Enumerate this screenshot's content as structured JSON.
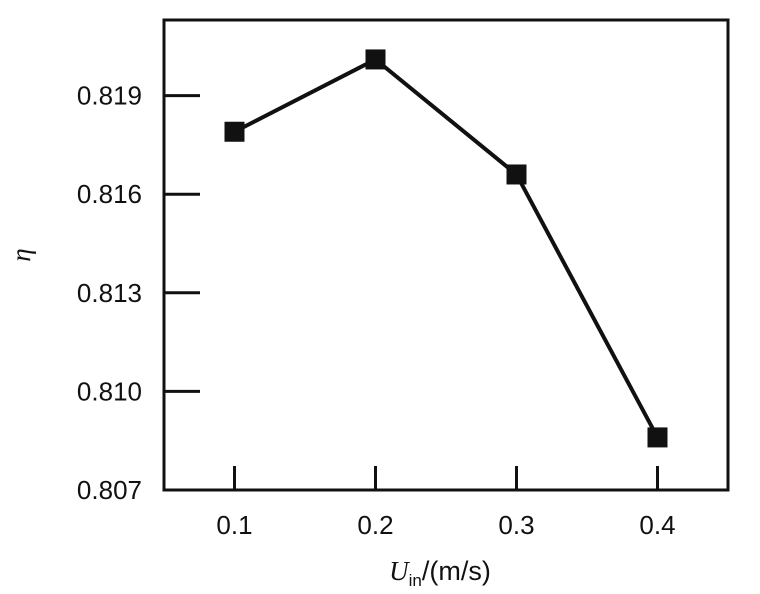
{
  "chart_data": {
    "type": "line",
    "x": [
      0.1,
      0.2,
      0.3,
      0.4
    ],
    "y": [
      0.8179,
      0.8201,
      0.8166,
      0.8086
    ],
    "xticks": [
      "0.1",
      "0.2",
      "0.3",
      "0.4"
    ],
    "xtick_values": [
      0.1,
      0.2,
      0.3,
      0.4
    ],
    "yticks": [
      "0.807",
      "0.810",
      "0.813",
      "0.816",
      "0.819"
    ],
    "ytick_values": [
      0.807,
      0.81,
      0.813,
      0.816,
      0.819
    ],
    "xlim": [
      0.05,
      0.45
    ],
    "ylim": [
      0.807,
      0.8213
    ],
    "xlabel_main": "U",
    "xlabel_sub": "in",
    "xlabel_unit": "/(m/s)",
    "ylabel": "η",
    "marker": "square",
    "line_color": "#111111",
    "marker_color": "#111111",
    "grid": false
  }
}
